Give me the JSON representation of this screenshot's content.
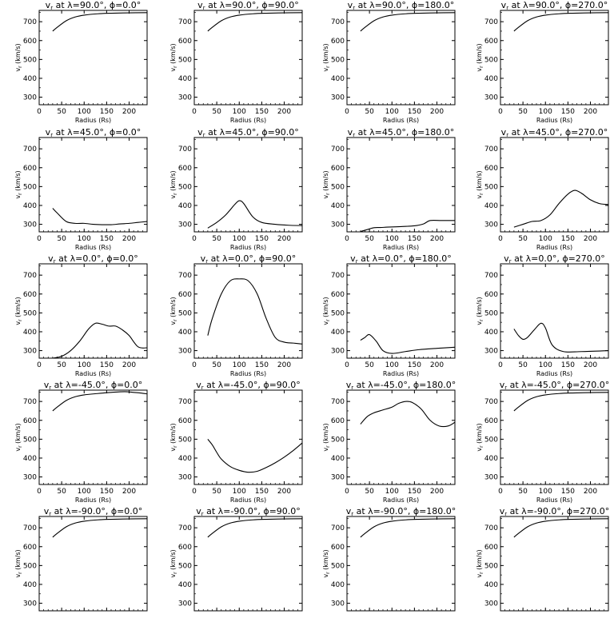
{
  "chart_data": [
    {
      "type": "line",
      "title": "v_r at λ=90.0°, ϕ=0.0°",
      "title_parts": {
        "lat": "90.0",
        "lon": "0.0"
      },
      "xlabel": "Radius (Rs)",
      "ylabel": "v_r (km/s)",
      "xlim": [
        0,
        240
      ],
      "ylim": [
        260,
        760
      ],
      "x": [
        30,
        40,
        60,
        80,
        100,
        130,
        160,
        200,
        240
      ],
      "y": [
        650,
        670,
        705,
        725,
        735,
        742,
        745,
        747,
        748
      ]
    },
    {
      "type": "line",
      "title": "v_r at λ=90.0°, ϕ=90.0°",
      "title_parts": {
        "lat": "90.0",
        "lon": "90.0"
      },
      "xlabel": "Radius (Rs)",
      "ylabel": "v_r (km/s)",
      "xlim": [
        0,
        240
      ],
      "ylim": [
        260,
        760
      ],
      "x": [
        30,
        40,
        60,
        80,
        100,
        130,
        160,
        200,
        240
      ],
      "y": [
        650,
        670,
        705,
        725,
        735,
        742,
        745,
        747,
        748
      ]
    },
    {
      "type": "line",
      "title": "v_r at λ=90.0°, ϕ=180.0°",
      "title_parts": {
        "lat": "90.0",
        "lon": "180.0"
      },
      "xlabel": "Radius (Rs)",
      "ylabel": "v_r (km/s)",
      "xlim": [
        0,
        240
      ],
      "ylim": [
        260,
        760
      ],
      "x": [
        30,
        40,
        60,
        80,
        100,
        130,
        160,
        200,
        240
      ],
      "y": [
        650,
        670,
        705,
        725,
        735,
        742,
        745,
        747,
        748
      ]
    },
    {
      "type": "line",
      "title": "v_r at λ=90.0°, ϕ=270.0°",
      "title_parts": {
        "lat": "90.0",
        "lon": "270.0"
      },
      "xlabel": "Radius (Rs)",
      "ylabel": "v_r (km/s)",
      "xlim": [
        0,
        240
      ],
      "ylim": [
        260,
        760
      ],
      "x": [
        30,
        40,
        60,
        80,
        100,
        130,
        160,
        200,
        240
      ],
      "y": [
        650,
        670,
        705,
        725,
        735,
        742,
        745,
        747,
        748
      ]
    },
    {
      "type": "line",
      "title": "v_r at λ=45.0°, ϕ=0.0°",
      "title_parts": {
        "lat": "45.0",
        "lon": "0.0"
      },
      "xlabel": "Radius (Rs)",
      "ylabel": "v_r (km/s)",
      "xlim": [
        0,
        240
      ],
      "ylim": [
        260,
        760
      ],
      "x": [
        30,
        40,
        60,
        80,
        100,
        120,
        140,
        160,
        180,
        200,
        220,
        240
      ],
      "y": [
        385,
        360,
        315,
        305,
        305,
        300,
        298,
        298,
        302,
        305,
        310,
        315
      ]
    },
    {
      "type": "line",
      "title": "v_r at λ=45.0°, ϕ=90.0°",
      "title_parts": {
        "lat": "45.0",
        "lon": "90.0"
      },
      "xlabel": "Radius (Rs)",
      "ylabel": "v_r (km/s)",
      "xlim": [
        0,
        240
      ],
      "ylim": [
        260,
        760
      ],
      "x": [
        30,
        50,
        70,
        90,
        100,
        110,
        130,
        150,
        180,
        210,
        240
      ],
      "y": [
        280,
        310,
        350,
        405,
        425,
        410,
        340,
        310,
        300,
        295,
        293
      ]
    },
    {
      "type": "line",
      "title": "v_r at λ=45.0°, ϕ=180.0°",
      "title_parts": {
        "lat": "45.0",
        "lon": "180.0"
      },
      "xlabel": "Radius (Rs)",
      "ylabel": "v_r (km/s)",
      "xlim": [
        0,
        240
      ],
      "ylim": [
        260,
        760
      ],
      "x": [
        30,
        45,
        60,
        75,
        90,
        120,
        150,
        170,
        185,
        210,
        240
      ],
      "y": [
        262,
        272,
        282,
        283,
        285,
        288,
        292,
        302,
        320,
        320,
        320
      ]
    },
    {
      "type": "line",
      "title": "v_r at λ=45.0°, ϕ=270.0°",
      "title_parts": {
        "lat": "45.0",
        "lon": "270.0"
      },
      "xlabel": "Radius (Rs)",
      "ylabel": "v_r (km/s)",
      "xlim": [
        0,
        240
      ],
      "ylim": [
        260,
        760
      ],
      "x": [
        30,
        50,
        70,
        90,
        110,
        130,
        150,
        165,
        180,
        200,
        220,
        240
      ],
      "y": [
        285,
        300,
        315,
        320,
        350,
        410,
        460,
        480,
        465,
        430,
        410,
        405
      ]
    },
    {
      "type": "line",
      "title": "v_r at λ=0.0°, ϕ=0.0°",
      "title_parts": {
        "lat": "0.0",
        "lon": "0.0"
      },
      "xlabel": "Radius (Rs)",
      "ylabel": "v_r (km/s)",
      "xlim": [
        0,
        240
      ],
      "ylim": [
        260,
        760
      ],
      "x": [
        30,
        50,
        70,
        90,
        110,
        125,
        140,
        155,
        170,
        185,
        200,
        220,
        240
      ],
      "y": [
        260,
        270,
        300,
        350,
        415,
        445,
        440,
        430,
        430,
        410,
        380,
        320,
        315
      ]
    },
    {
      "type": "line",
      "title": "v_r at λ=0.0°, ϕ=90.0°",
      "title_parts": {
        "lat": "0.0",
        "lon": "90.0"
      },
      "xlabel": "Radius (Rs)",
      "ylabel": "v_r (km/s)",
      "xlim": [
        0,
        240
      ],
      "ylim": [
        260,
        760
      ],
      "x": [
        30,
        40,
        60,
        80,
        100,
        120,
        140,
        160,
        180,
        200,
        220,
        240
      ],
      "y": [
        380,
        470,
        600,
        670,
        680,
        670,
        600,
        470,
        370,
        345,
        340,
        335
      ]
    },
    {
      "type": "line",
      "title": "v_r at λ=0.0°, ϕ=180.0°",
      "title_parts": {
        "lat": "0.0",
        "lon": "180.0"
      },
      "xlabel": "Radius (Rs)",
      "ylabel": "v_r (km/s)",
      "xlim": [
        0,
        240
      ],
      "ylim": [
        260,
        760
      ],
      "x": [
        30,
        40,
        50,
        65,
        80,
        100,
        130,
        160,
        200,
        240
      ],
      "y": [
        355,
        370,
        385,
        350,
        300,
        285,
        295,
        305,
        312,
        318
      ]
    },
    {
      "type": "line",
      "title": "v_r at λ=0.0°, ϕ=270.0°",
      "title_parts": {
        "lat": "0.0",
        "lon": "270.0"
      },
      "xlabel": "Radius (Rs)",
      "ylabel": "v_r (km/s)",
      "xlim": [
        0,
        240
      ],
      "ylim": [
        260,
        760
      ],
      "x": [
        30,
        40,
        50,
        60,
        75,
        90,
        100,
        115,
        140,
        180,
        240
      ],
      "y": [
        415,
        380,
        360,
        370,
        410,
        445,
        420,
        330,
        295,
        295,
        300
      ]
    },
    {
      "type": "line",
      "title": "v_r at λ=-45.0°, ϕ=0.0°",
      "title_parts": {
        "lat": "-45.0",
        "lon": "0.0"
      },
      "xlabel": "Radius (Rs)",
      "ylabel": "v_r (km/s)",
      "xlim": [
        0,
        240
      ],
      "ylim": [
        260,
        760
      ],
      "x": [
        30,
        40,
        60,
        80,
        100,
        130,
        160,
        190,
        210,
        225,
        240
      ],
      "y": [
        650,
        670,
        705,
        725,
        735,
        742,
        748,
        752,
        748,
        745,
        740
      ]
    },
    {
      "type": "line",
      "title": "v_r at λ=-45.0°, ϕ=90.0°",
      "title_parts": {
        "lat": "-45.0",
        "lon": "90.0"
      },
      "xlabel": "Radius (Rs)",
      "ylabel": "v_r (km/s)",
      "xlim": [
        0,
        240
      ],
      "ylim": [
        260,
        760
      ],
      "x": [
        30,
        40,
        50,
        60,
        80,
        100,
        120,
        140,
        160,
        180,
        200,
        220,
        240
      ],
      "y": [
        500,
        470,
        430,
        395,
        355,
        335,
        325,
        330,
        350,
        375,
        405,
        440,
        480
      ]
    },
    {
      "type": "line",
      "title": "v_r at λ=-45.0°, ϕ=180.0°",
      "title_parts": {
        "lat": "-45.0",
        "lon": "180.0"
      },
      "xlabel": "Radius (Rs)",
      "ylabel": "v_r (km/s)",
      "xlim": [
        0,
        240
      ],
      "ylim": [
        260,
        760
      ],
      "x": [
        30,
        45,
        60,
        80,
        100,
        115,
        130,
        145,
        165,
        185,
        205,
        225,
        240
      ],
      "y": [
        580,
        620,
        640,
        655,
        670,
        690,
        700,
        695,
        660,
        600,
        570,
        570,
        590
      ]
    },
    {
      "type": "line",
      "title": "v_r at λ=-45.0°, ϕ=270.0°",
      "title_parts": {
        "lat": "-45.0",
        "lon": "270.0"
      },
      "xlabel": "Radius (Rs)",
      "ylabel": "v_r (km/s)",
      "xlim": [
        0,
        240
      ],
      "ylim": [
        260,
        760
      ],
      "x": [
        30,
        40,
        60,
        80,
        100,
        130,
        160,
        200,
        240
      ],
      "y": [
        650,
        670,
        705,
        725,
        735,
        742,
        745,
        747,
        748
      ]
    },
    {
      "type": "line",
      "title": "v_r at λ=-90.0°, ϕ=0.0°",
      "title_parts": {
        "lat": "-90.0",
        "lon": "0.0"
      },
      "xlabel": "Radius (Rs)",
      "ylabel": "v_r (km/s)",
      "xlim": [
        0,
        240
      ],
      "ylim": [
        260,
        760
      ],
      "x": [
        30,
        40,
        60,
        80,
        100,
        130,
        160,
        200,
        240
      ],
      "y": [
        650,
        670,
        705,
        725,
        735,
        742,
        745,
        747,
        748
      ]
    },
    {
      "type": "line",
      "title": "v_r at λ=-90.0°, ϕ=90.0°",
      "title_parts": {
        "lat": "-90.0",
        "lon": "90.0"
      },
      "xlabel": "Radius (Rs)",
      "ylabel": "v_r (km/s)",
      "xlim": [
        0,
        240
      ],
      "ylim": [
        260,
        760
      ],
      "x": [
        30,
        40,
        60,
        80,
        100,
        130,
        160,
        200,
        240
      ],
      "y": [
        650,
        670,
        705,
        725,
        735,
        742,
        745,
        747,
        748
      ]
    },
    {
      "type": "line",
      "title": "v_r at λ=-90.0°, ϕ=180.0°",
      "title_parts": {
        "lat": "-90.0",
        "lon": "180.0"
      },
      "xlabel": "Radius (Rs)",
      "ylabel": "v_r (km/s)",
      "xlim": [
        0,
        240
      ],
      "ylim": [
        260,
        760
      ],
      "x": [
        30,
        40,
        60,
        80,
        100,
        130,
        160,
        200,
        240
      ],
      "y": [
        650,
        670,
        705,
        725,
        735,
        742,
        745,
        747,
        748
      ]
    },
    {
      "type": "line",
      "title": "v_r at λ=-90.0°, ϕ=270.0°",
      "title_parts": {
        "lat": "-90.0",
        "lon": "270.0"
      },
      "xlabel": "Radius (Rs)",
      "ylabel": "v_r (km/s)",
      "xlim": [
        0,
        240
      ],
      "ylim": [
        260,
        760
      ],
      "x": [
        30,
        40,
        60,
        80,
        100,
        130,
        160,
        200,
        240
      ],
      "y": [
        650,
        670,
        705,
        725,
        735,
        742,
        745,
        747,
        748
      ]
    }
  ],
  "axes": {
    "xticks": [
      0,
      50,
      100,
      150,
      200
    ],
    "yticks": [
      300,
      400,
      500,
      600,
      700
    ],
    "xlabel_text": "Radius (Rs)",
    "ylabel_text": "v_r (km/s)"
  }
}
